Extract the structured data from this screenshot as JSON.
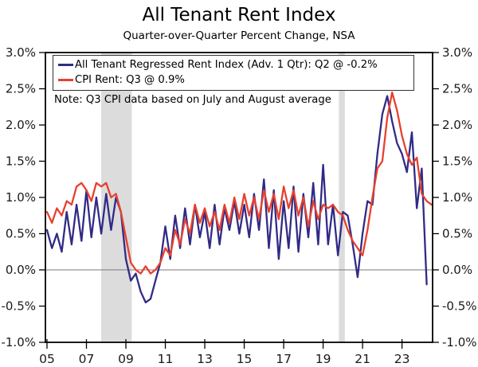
{
  "header": {
    "title": "All Tenant Rent Index",
    "subtitle": "Quarter-over-Quarter Percent Change, NSA"
  },
  "note": "Note: Q3 CPI data based on July and August average",
  "colors": {
    "series_navy": "#312b85",
    "series_red": "#e8402f",
    "recession_band": "#dcdcdc",
    "axis": "#000000",
    "zero_line": "#7a7a7a",
    "tick_label": "#1a1a1a"
  },
  "chart_data": {
    "type": "line",
    "title": "All Tenant Rent Index",
    "subtitle": "Quarter-over-Quarter Percent Change, NSA",
    "note": "Note: Q3 CPI data based on July and August average",
    "x_unit": "year, quarterly points",
    "x_start": 2005.0,
    "x_step": 0.25,
    "xlim": [
      2004.92,
      2024.55
    ],
    "ylim": [
      -1.0,
      3.0
    ],
    "grid": false,
    "zero_line": true,
    "legend_position": "top-left-inside",
    "x_ticks": [
      {
        "value": 2005,
        "label": "05"
      },
      {
        "value": 2007,
        "label": "07"
      },
      {
        "value": 2009,
        "label": "09"
      },
      {
        "value": 2011,
        "label": "11"
      },
      {
        "value": 2013,
        "label": "13"
      },
      {
        "value": 2015,
        "label": "15"
      },
      {
        "value": 2017,
        "label": "17"
      },
      {
        "value": 2019,
        "label": "19"
      },
      {
        "value": 2021,
        "label": "21"
      },
      {
        "value": 2023,
        "label": "23"
      }
    ],
    "y_ticks": [
      {
        "value": -1.0,
        "label": "-1.0%"
      },
      {
        "value": -0.5,
        "label": "-0.5%"
      },
      {
        "value": 0.0,
        "label": "0.0%"
      },
      {
        "value": 0.5,
        "label": "0.5%"
      },
      {
        "value": 1.0,
        "label": "1.0%"
      },
      {
        "value": 1.5,
        "label": "1.5%"
      },
      {
        "value": 2.0,
        "label": "2.0%"
      },
      {
        "value": 2.5,
        "label": "2.5%"
      },
      {
        "value": 3.0,
        "label": "3.0%"
      }
    ],
    "recession_bands": [
      {
        "start": 2007.75,
        "end": 2009.3
      },
      {
        "start": 2019.8,
        "end": 2020.1
      }
    ],
    "series": [
      {
        "name": "All Tenant Regressed Rent Index (Adv. 1 Qtr): Q2 @ -0.2%",
        "color": "#312b85",
        "x_start": 2005.0,
        "x_step": 0.25,
        "values": [
          0.55,
          0.3,
          0.5,
          0.25,
          0.8,
          0.35,
          0.9,
          0.4,
          1.1,
          0.45,
          1.0,
          0.5,
          1.05,
          0.55,
          1.0,
          0.8,
          0.15,
          -0.15,
          -0.05,
          -0.3,
          -0.45,
          -0.4,
          -0.15,
          0.1,
          0.6,
          0.15,
          0.75,
          0.3,
          0.85,
          0.35,
          0.9,
          0.45,
          0.8,
          0.3,
          0.9,
          0.35,
          0.85,
          0.55,
          0.95,
          0.5,
          0.9,
          0.45,
          1.05,
          0.55,
          1.25,
          0.3,
          1.1,
          0.15,
          0.95,
          0.3,
          1.15,
          0.25,
          1.05,
          0.45,
          1.2,
          0.35,
          1.45,
          0.35,
          0.9,
          0.2,
          0.8,
          0.75,
          0.35,
          -0.1,
          0.5,
          0.95,
          0.9,
          1.6,
          2.15,
          2.4,
          2.05,
          1.75,
          1.6,
          1.35,
          1.9,
          0.85,
          1.4,
          -0.2
        ]
      },
      {
        "name": "CPI Rent: Q3 @ 0.9%",
        "color": "#e8402f",
        "x_start": 2005.0,
        "x_step": 0.25,
        "values": [
          0.8,
          0.65,
          0.85,
          0.75,
          0.95,
          0.9,
          1.15,
          1.2,
          1.1,
          0.95,
          1.2,
          1.15,
          1.2,
          1.0,
          1.05,
          0.8,
          0.45,
          0.1,
          0.0,
          -0.05,
          0.05,
          -0.05,
          0.0,
          0.1,
          0.3,
          0.2,
          0.55,
          0.35,
          0.7,
          0.5,
          0.9,
          0.65,
          0.85,
          0.6,
          0.8,
          0.55,
          0.9,
          0.65,
          1.0,
          0.7,
          1.05,
          0.75,
          1.0,
          0.7,
          1.1,
          0.8,
          1.05,
          0.7,
          1.15,
          0.85,
          1.1,
          0.75,
          1.0,
          0.6,
          0.95,
          0.7,
          0.9,
          0.85,
          0.9,
          0.8,
          0.75,
          0.55,
          0.4,
          0.3,
          0.2,
          0.55,
          1.0,
          1.4,
          1.5,
          2.1,
          2.45,
          2.2,
          1.85,
          1.6,
          1.45,
          1.55,
          1.05,
          0.95,
          0.9
        ]
      }
    ]
  }
}
